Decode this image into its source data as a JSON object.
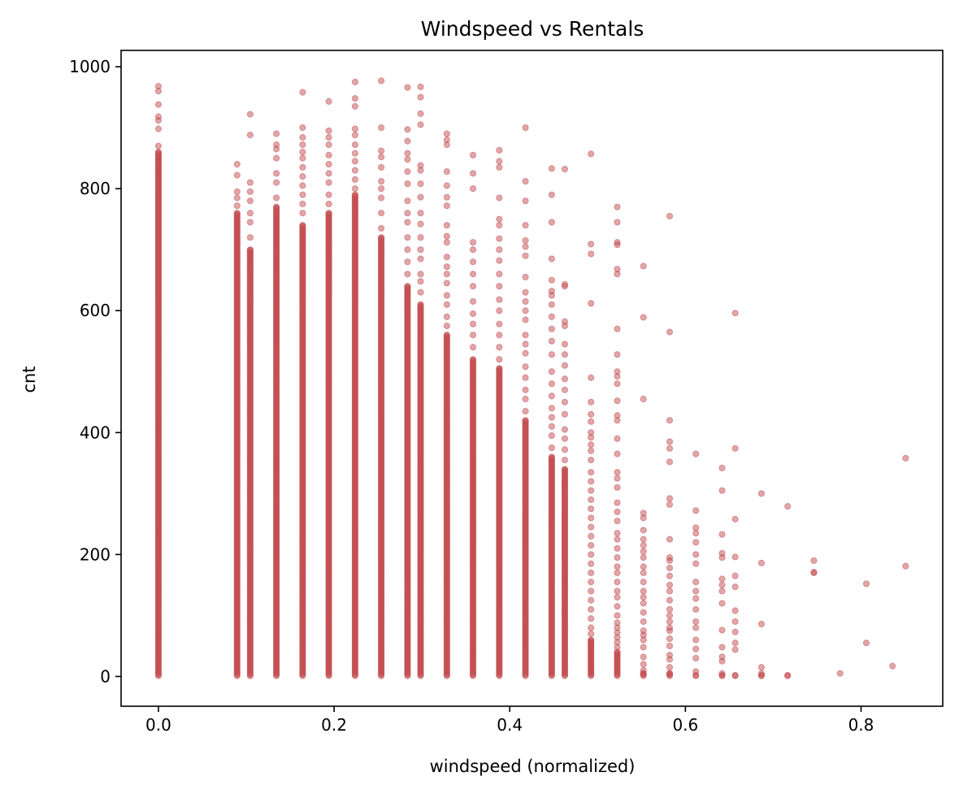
{
  "chart_data": {
    "type": "scatter",
    "title": "Windspeed vs Rentals",
    "xlabel": "windspeed (normalized)",
    "ylabel": "cnt",
    "xlim": [
      -0.0425,
      0.893
    ],
    "ylim": [
      -48.8,
      1026.8
    ],
    "xticks": [
      0.0,
      0.2,
      0.4,
      0.6,
      0.8
    ],
    "xtick_labels": [
      "0.0",
      "0.2",
      "0.4",
      "0.6",
      "0.8"
    ],
    "yticks": [
      0,
      200,
      400,
      600,
      800,
      1000
    ],
    "ytick_labels": [
      "0",
      "200",
      "400",
      "600",
      "800",
      "1000"
    ],
    "grid": false,
    "marker_color": "#c44e52",
    "marker_alpha": 0.5,
    "series": [
      {
        "columns": [
          {
            "x": 0.0,
            "range": [
              1,
              860
            ],
            "extra": [
              870,
              898,
              912,
              918,
              938,
              960,
              968
            ]
          },
          {
            "x": 0.0896,
            "range": [
              1,
              760
            ],
            "extra": [
              772,
              785,
              795,
              822,
              840
            ]
          },
          {
            "x": 0.1045,
            "range": [
              1,
              700
            ],
            "extra": [
              720,
              745,
              760,
              780,
              795,
              810,
              888,
              922
            ]
          },
          {
            "x": 0.1343,
            "range": [
              1,
              770
            ],
            "extra": [
              785,
              810,
              825,
              850,
              865,
              872,
              890
            ]
          },
          {
            "x": 0.1642,
            "range": [
              1,
              740
            ],
            "extra": [
              760,
              775,
              790,
              805,
              820,
              835,
              850,
              860,
              872,
              884,
              900,
              958
            ]
          },
          {
            "x": 0.194,
            "range": [
              1,
              760
            ],
            "extra": [
              775,
              790,
              810,
              825,
              840,
              855,
              872,
              884,
              895,
              943
            ]
          },
          {
            "x": 0.2239,
            "range": [
              1,
              790
            ],
            "extra": [
              800,
              815,
              830,
              845,
              858,
              872,
              888,
              898,
              935,
              948,
              975
            ]
          },
          {
            "x": 0.2537,
            "range": [
              1,
              720
            ],
            "extra": [
              735,
              760,
              785,
              800,
              812,
              835,
              852,
              862,
              900,
              977
            ]
          },
          {
            "x": 0.2836,
            "range": [
              1,
              640
            ],
            "extra": [
              660,
              680,
              700,
              720,
              745,
              760,
              780,
              808,
              828,
              848,
              858,
              878,
              897,
              966
            ]
          },
          {
            "x": 0.2985,
            "range": [
              1,
              610
            ],
            "extra": [
              630,
              648,
              660,
              685,
              700,
              720,
              742,
              760,
              786,
              808,
              830,
              838,
              905,
              923,
              950,
              967
            ]
          },
          {
            "x": 0.3284,
            "range": [
              1,
              560
            ],
            "extra": [
              575,
              590,
              610,
              625,
              645,
              660,
              672,
              688,
              712,
              722,
              740,
              772,
              786,
              805,
              828,
              872,
              880,
              890
            ]
          },
          {
            "x": 0.3582,
            "range": [
              1,
              520
            ],
            "extra": [
              540,
              560,
              578,
              595,
              615,
              640,
              660,
              680,
              700,
              712,
              800,
              825,
              855
            ]
          },
          {
            "x": 0.3881,
            "range": [
              1,
              505
            ],
            "extra": [
              520,
              540,
              560,
              578,
              600,
              618,
              640,
              660,
              682,
              700,
              718,
              740,
              750,
              785,
              835,
              845,
              863
            ]
          },
          {
            "x": 0.4179,
            "range": [
              1,
              420
            ],
            "extra": [
              435,
              455,
              470,
              490,
              508,
              530,
              545,
              560,
              585,
              600,
              615,
              630,
              655,
              690,
              705,
              715,
              740,
              780,
              812,
              900
            ]
          },
          {
            "x": 0.4478,
            "range": [
              1,
              360
            ],
            "extra": [
              375,
              395,
              410,
              425,
              440,
              460,
              480,
              500,
              528,
              550,
              570,
              590,
              610,
              625,
              632,
              650,
              685,
              745,
              790,
              833
            ]
          },
          {
            "x": 0.4627,
            "range": [
              1,
              340
            ],
            "extra": [
              355,
              372,
              390,
              405,
              430,
              450,
              470,
              488,
              510,
              528,
              545,
              575,
              582,
              640,
              643,
              832
            ]
          },
          {
            "x": 0.4925,
            "range": [
              1,
              60
            ],
            "extra": [
              70,
              80,
              95,
              110,
              125,
              140,
              155,
              170,
              185,
              200,
              215,
              230,
              245,
              260,
              275,
              290,
              305,
              320,
              335,
              355,
              370,
              380,
              392,
              400,
              418,
              430,
              450,
              490,
              612,
              693,
              709,
              857
            ]
          },
          {
            "x": 0.5224,
            "range": [
              1,
              40
            ],
            "extra": [
              48,
              56,
              64,
              72,
              80,
              88,
              100,
              115,
              130,
              140,
              155,
              170,
              180,
              195,
              210,
              225,
              235,
              255,
              270,
              285,
              310,
              325,
              335,
              365,
              390,
              420,
              428,
              452,
              480,
              492,
              500,
              528,
              570,
              660,
              668,
              708,
              712,
              745,
              770
            ]
          },
          {
            "x": 0.5522,
            "range": [
              1,
              5
            ],
            "extra": [
              10,
              20,
              32,
              48,
              60,
              68,
              75,
              90,
              105,
              120,
              130,
              140,
              155,
              170,
              180,
              195,
              205,
              215,
              225,
              240,
              260,
              268,
              455,
              589,
              673
            ]
          },
          {
            "x": 0.5821,
            "range": [
              1,
              5
            ],
            "extra": [
              15,
              28,
              35,
              50,
              62,
              75,
              80,
              90,
              100,
              110,
              125,
              140,
              150,
              165,
              178,
              190,
              195,
              225,
              282,
              292,
              352,
              374,
              385,
              420,
              565,
              755
            ]
          },
          {
            "x": 0.6119,
            "range": [
              1,
              2
            ],
            "extra": [
              8,
              30,
              45,
              60,
              80,
              90,
              110,
              128,
              140,
              155,
              185,
              200,
              220,
              235,
              244,
              272,
              365
            ]
          },
          {
            "x": 0.6418,
            "range": [
              1,
              2
            ],
            "extra": [
              5,
              25,
              32,
              48,
              76,
              120,
              140,
              150,
              160,
              195,
              202,
              233,
              305,
              342
            ]
          },
          {
            "x": 0.6567,
            "range": [
              1,
              2
            ],
            "extra": [
              44,
              55,
              73,
              90,
              108,
              147,
              165,
              196,
              258,
              374,
              596
            ]
          },
          {
            "x": 0.6866,
            "range": [
              1,
              2
            ],
            "extra": [
              5,
              15,
              86,
              186,
              300
            ]
          },
          {
            "x": 0.7164,
            "range": [
              1,
              2
            ],
            "extra": [
              279
            ]
          },
          {
            "x": 0.7463,
            "range": [
              170,
              171
            ],
            "extra": [
              190
            ]
          },
          {
            "x": 0.7761,
            "range": [
              5,
              5
            ],
            "extra": []
          },
          {
            "x": 0.806,
            "range": [
              55,
              55
            ],
            "extra": [
              152
            ]
          },
          {
            "x": 0.8358,
            "range": [
              17,
              17
            ],
            "extra": []
          },
          {
            "x": 0.8507,
            "range": [
              181,
              181
            ],
            "extra": [
              358
            ]
          }
        ]
      }
    ]
  }
}
